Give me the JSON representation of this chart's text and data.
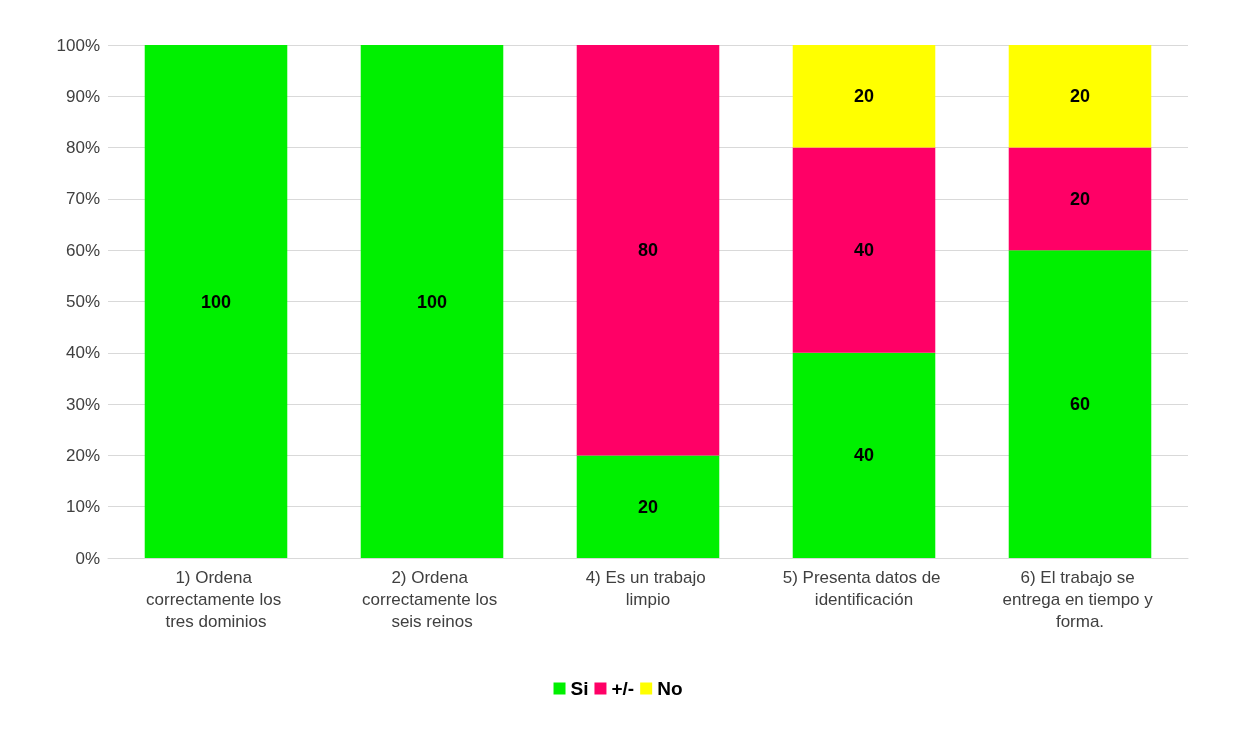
{
  "chart_data": {
    "type": "bar",
    "stacked": true,
    "categories": [
      "1) Ordena correctamente los tres dominios",
      "2) Ordena correctamente los seis reinos",
      "4) Es un trabajo limpio",
      "5) Presenta datos de identificación",
      "6) El trabajo se entrega en tiempo y forma."
    ],
    "series": [
      {
        "name": "Si",
        "color": "#00f000",
        "values": [
          100,
          100,
          20,
          40,
          60
        ]
      },
      {
        "name": "+/-",
        "color": "#ff0066",
        "values": [
          null,
          null,
          80,
          40,
          20
        ]
      },
      {
        "name": "No",
        "color": "#ffff00",
        "values": [
          null,
          null,
          null,
          20,
          20
        ]
      }
    ],
    "ylim": [
      0,
      100
    ],
    "yticks": [
      {
        "value": 0,
        "label": "0%"
      },
      {
        "value": 10,
        "label": "10%"
      },
      {
        "value": 20,
        "label": "20%"
      },
      {
        "value": 30,
        "label": "30%"
      },
      {
        "value": 40,
        "label": "40%"
      },
      {
        "value": 50,
        "label": "50%"
      },
      {
        "value": 60,
        "label": "60%"
      },
      {
        "value": 70,
        "label": "70%"
      },
      {
        "value": 80,
        "label": "80%"
      },
      {
        "value": 90,
        "label": "90%"
      },
      {
        "value": 100,
        "label": "100%"
      }
    ],
    "grid": "y",
    "legend": "bottom",
    "data_labels": true
  }
}
